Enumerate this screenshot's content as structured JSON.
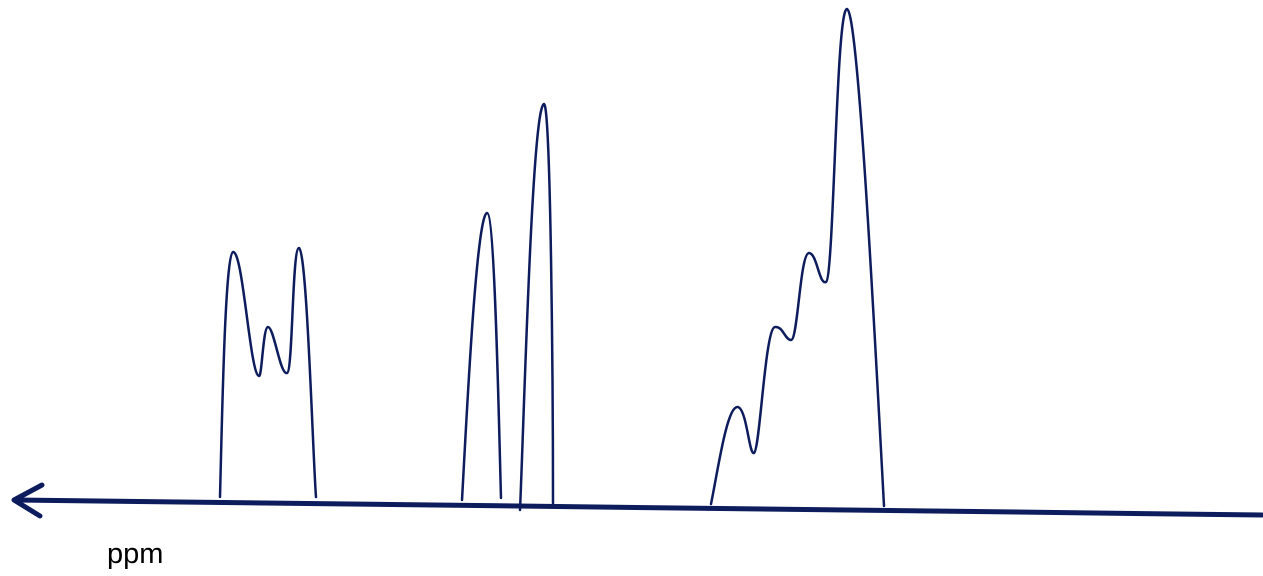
{
  "diagram": {
    "axis_label": "ppm",
    "stroke_color": "#0d1c5c",
    "background": "#ffffff",
    "peak_groups": [
      {
        "name": "triplet",
        "relative_heights": [
          1.0,
          0.68,
          1.01
        ]
      },
      {
        "name": "doublet",
        "relative_heights": [
          1.0,
          1.45
        ]
      },
      {
        "name": "multiplet",
        "relative_heights": [
          0.38,
          0.62,
          0.88,
          1.98
        ]
      }
    ]
  }
}
